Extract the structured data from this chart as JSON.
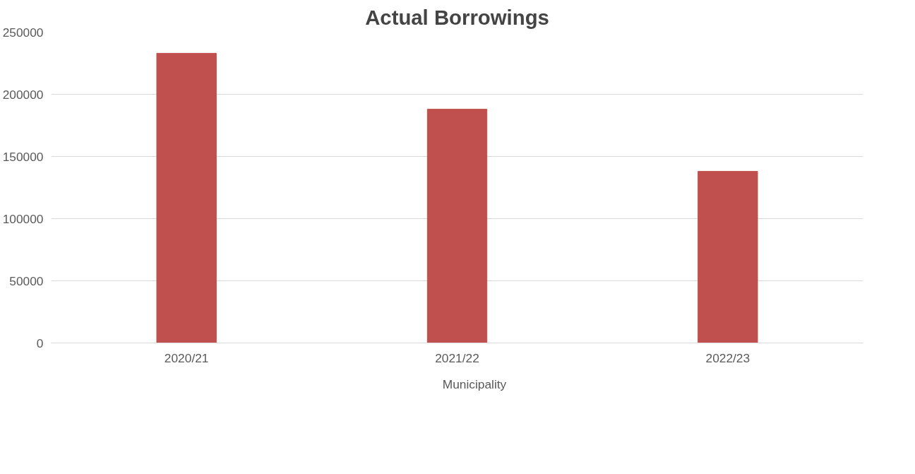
{
  "chart_data": {
    "type": "bar",
    "title": "Actual Borrowings",
    "categories": [
      "2020/21",
      "2021/22",
      "2022/23"
    ],
    "series": [
      {
        "name": "Municipality",
        "color": "#c0504d",
        "values": [
          233000,
          188000,
          138000
        ]
      }
    ],
    "ylim": [
      0,
      250000
    ],
    "yticks": [
      0,
      50000,
      100000,
      150000,
      200000,
      250000
    ],
    "grid": "y",
    "legend": "bottom"
  }
}
